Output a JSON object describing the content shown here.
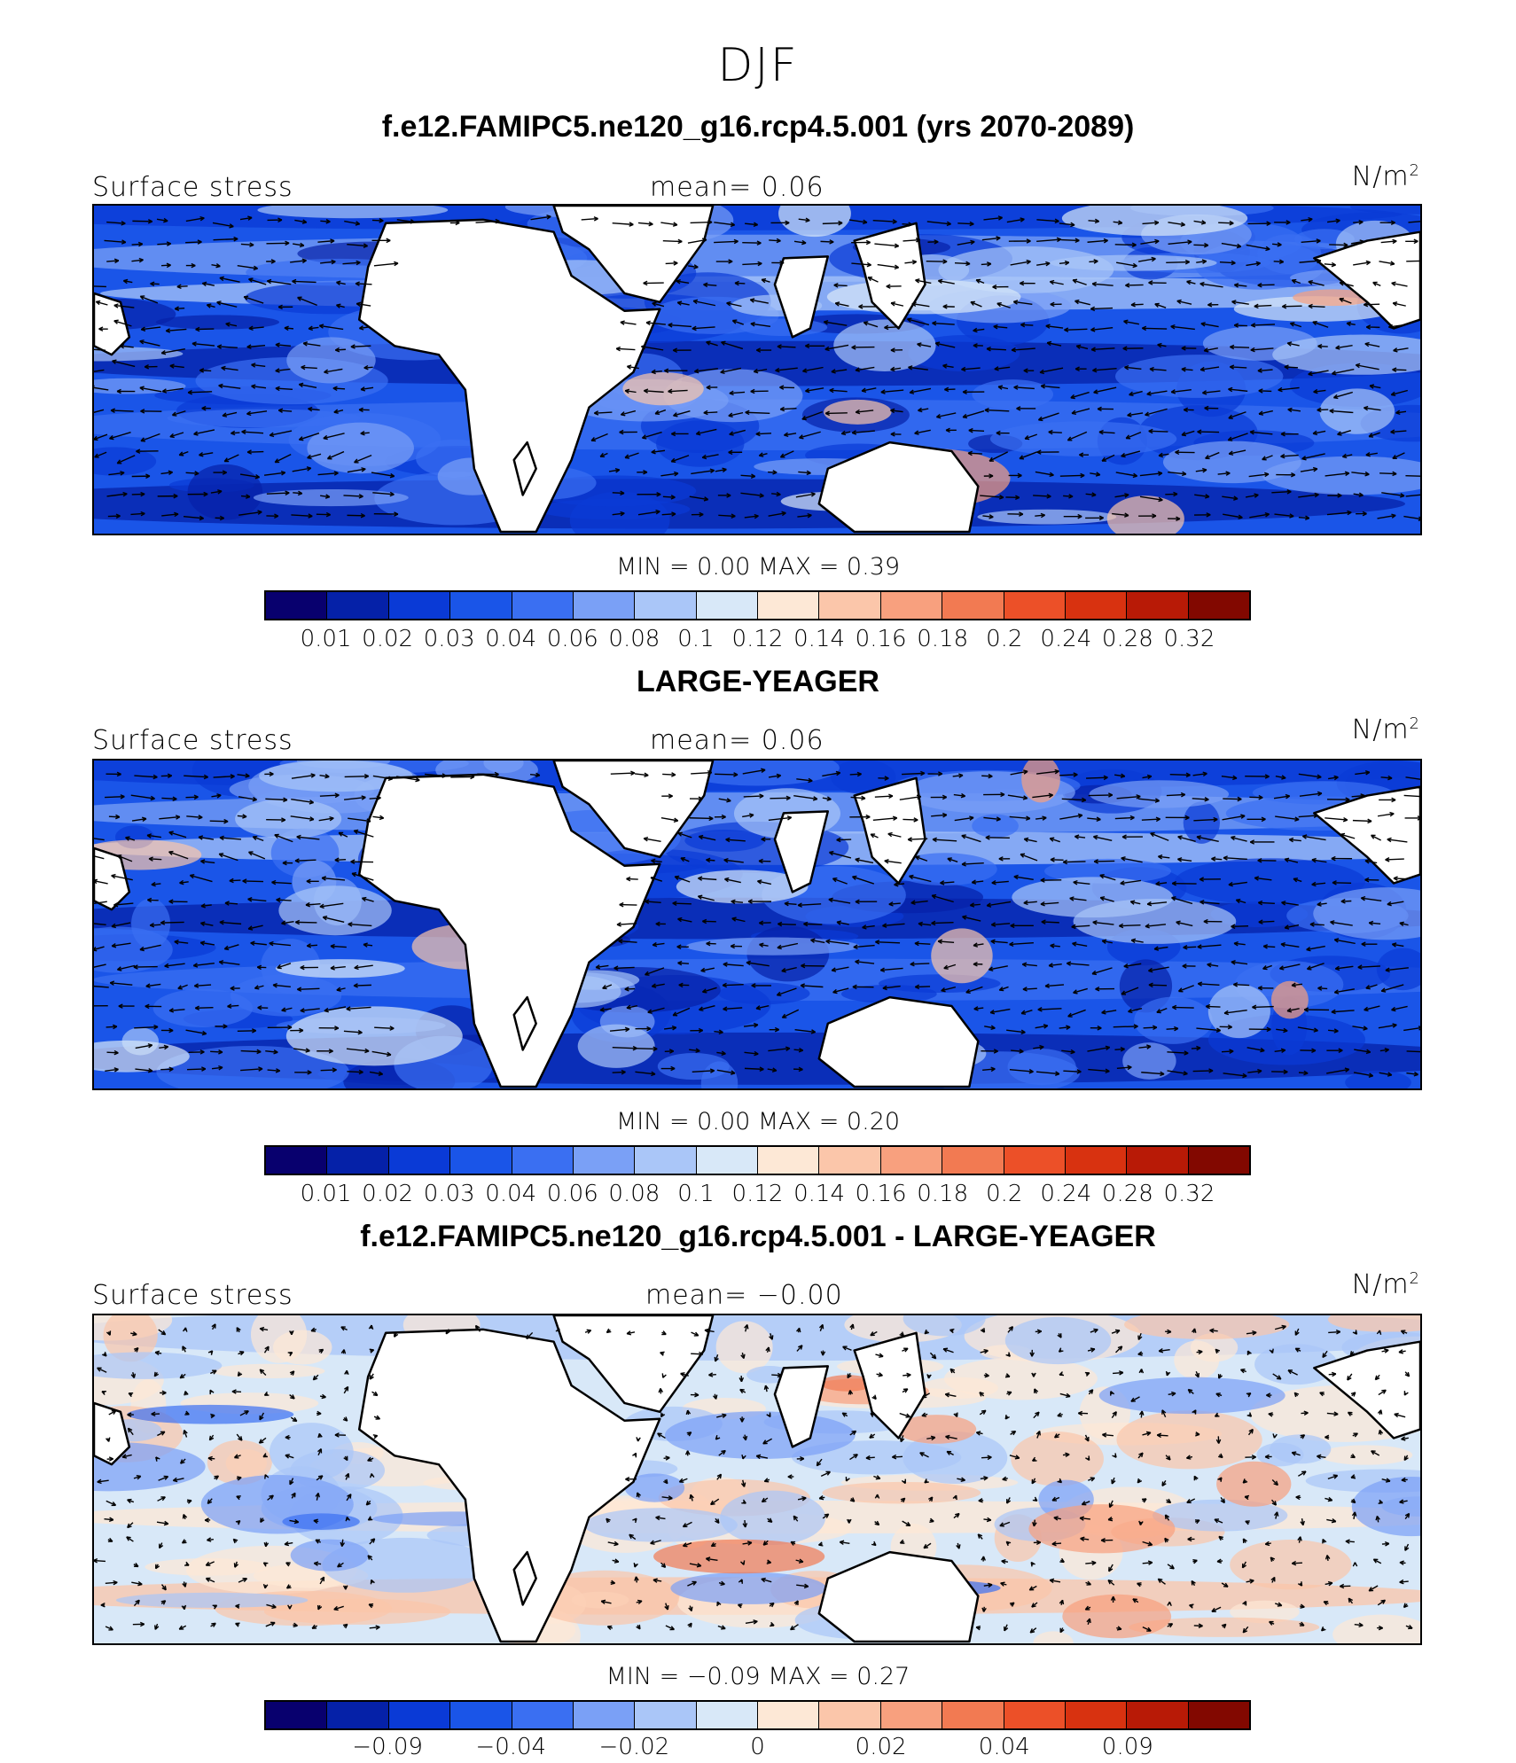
{
  "title": "DJF",
  "palette": {
    "sequential": [
      "#08006e",
      "#0521a8",
      "#0a3ad6",
      "#1a55e8",
      "#3a6ff2",
      "#7aa0f6",
      "#aac6f8",
      "#d8e8f8",
      "#fde8d6",
      "#fbc6aa",
      "#f8a07e",
      "#f27a52",
      "#ec5028",
      "#d83210",
      "#b81a06",
      "#820800"
    ],
    "diverging": [
      "#08006e",
      "#0521a8",
      "#0a3ad6",
      "#1a55e8",
      "#3a6ff2",
      "#7aa0f6",
      "#aac6f8",
      "#d8e8f8",
      "#fde8d6",
      "#fbc6aa",
      "#f8a07e",
      "#f27a52",
      "#ec5028",
      "#d83210",
      "#b81a06",
      "#820800"
    ]
  },
  "panels": [
    {
      "title": "f.e12.FAMIPC5.ne120_g16.rcp4.5.001 (yrs 2070-2089)",
      "field_label": "Surface stress",
      "mean_text": "mean=    0.06",
      "units": "N/m",
      "units_sup": "2",
      "minmax_text": "MIN =      0.00  MAX =      0.39",
      "colorbar_ticks": [
        "0.01",
        "0.02",
        "0.03",
        "0.04",
        "0.06",
        "0.08",
        "0.1",
        "0.12",
        "0.14",
        "0.16",
        "0.18",
        "0.2",
        "0.24",
        "0.28",
        "0.32"
      ],
      "style": "model"
    },
    {
      "title": "LARGE-YEAGER",
      "field_label": "Surface stress",
      "mean_text": "mean=    0.06",
      "units": "N/m",
      "units_sup": "2",
      "minmax_text": "MIN =      0.00  MAX =      0.20",
      "colorbar_ticks": [
        "0.01",
        "0.02",
        "0.03",
        "0.04",
        "0.06",
        "0.08",
        "0.1",
        "0.12",
        "0.14",
        "0.16",
        "0.18",
        "0.2",
        "0.24",
        "0.28",
        "0.32"
      ],
      "style": "obs"
    },
    {
      "title": "f.e12.FAMIPC5.ne120_g16.rcp4.5.001 - LARGE-YEAGER",
      "field_label": "Surface stress",
      "mean_text": "mean=   −0.00",
      "units": "N/m",
      "units_sup": "2",
      "minmax_text": "MIN =    −0.09  MAX =      0.27",
      "colorbar_ticks": [
        "−0.09",
        "−0.04",
        "−0.02",
        "0",
        "0.02",
        "0.04",
        "0.09"
      ],
      "style": "diff"
    }
  ],
  "chart_data": [
    {
      "type": "heatmap",
      "title": "f.e12.FAMIPC5.ne120_g16.rcp4.5.001 (yrs 2070-2089)",
      "variable": "Surface stress",
      "units": "N/m2",
      "mean": 0.06,
      "min": 0.0,
      "max": 0.39,
      "contour_levels": [
        0.01,
        0.02,
        0.03,
        0.04,
        0.06,
        0.08,
        0.1,
        0.12,
        0.14,
        0.16,
        0.18,
        0.2,
        0.24,
        0.28,
        0.32
      ],
      "overlay": "wind stress vectors"
    },
    {
      "type": "heatmap",
      "title": "LARGE-YEAGER",
      "variable": "Surface stress",
      "units": "N/m2",
      "mean": 0.06,
      "min": 0.0,
      "max": 0.2,
      "contour_levels": [
        0.01,
        0.02,
        0.03,
        0.04,
        0.06,
        0.08,
        0.1,
        0.12,
        0.14,
        0.16,
        0.18,
        0.2,
        0.24,
        0.28,
        0.32
      ],
      "overlay": "wind stress vectors"
    },
    {
      "type": "heatmap",
      "title": "f.e12.FAMIPC5.ne120_g16.rcp4.5.001 - LARGE-YEAGER",
      "variable": "Surface stress",
      "units": "N/m2",
      "mean": -0.0,
      "min": -0.09,
      "max": 0.27,
      "contour_levels": [
        -0.09,
        -0.04,
        -0.02,
        0,
        0.02,
        0.04,
        0.09
      ],
      "overlay": "wind stress difference vectors"
    }
  ]
}
